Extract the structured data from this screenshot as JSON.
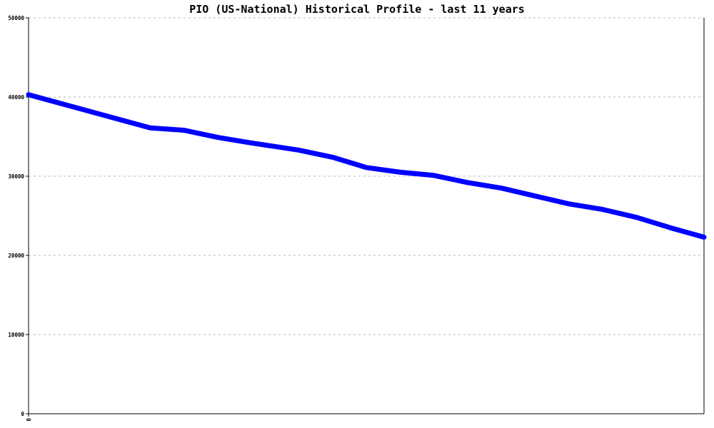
{
  "chart_data": {
    "type": "line",
    "title": "PIO (US-National) Historical Profile - last 11 years",
    "xlabel": "",
    "ylabel": "",
    "ylim": [
      0,
      50000
    ],
    "yticks": [
      0,
      10000,
      20000,
      30000,
      40000,
      50000
    ],
    "ytick_labels": [
      "0",
      "10000",
      "20000",
      "30000",
      "40000",
      "50000"
    ],
    "xtick_labels": [
      "0"
    ],
    "grid": true,
    "series": [
      {
        "color": "#0000ff",
        "x": [
          0,
          0.18,
          0.23,
          0.28,
          0.33,
          0.4,
          0.45,
          0.5,
          0.55,
          0.6,
          0.65,
          0.7,
          0.75,
          0.8,
          0.85,
          0.9,
          0.95,
          1.0
        ],
        "values": [
          40300,
          36100,
          35800,
          34900,
          34200,
          33300,
          32400,
          31100,
          30500,
          30100,
          29200,
          28500,
          27500,
          26500,
          25800,
          24800,
          23500,
          22300
        ]
      }
    ]
  }
}
